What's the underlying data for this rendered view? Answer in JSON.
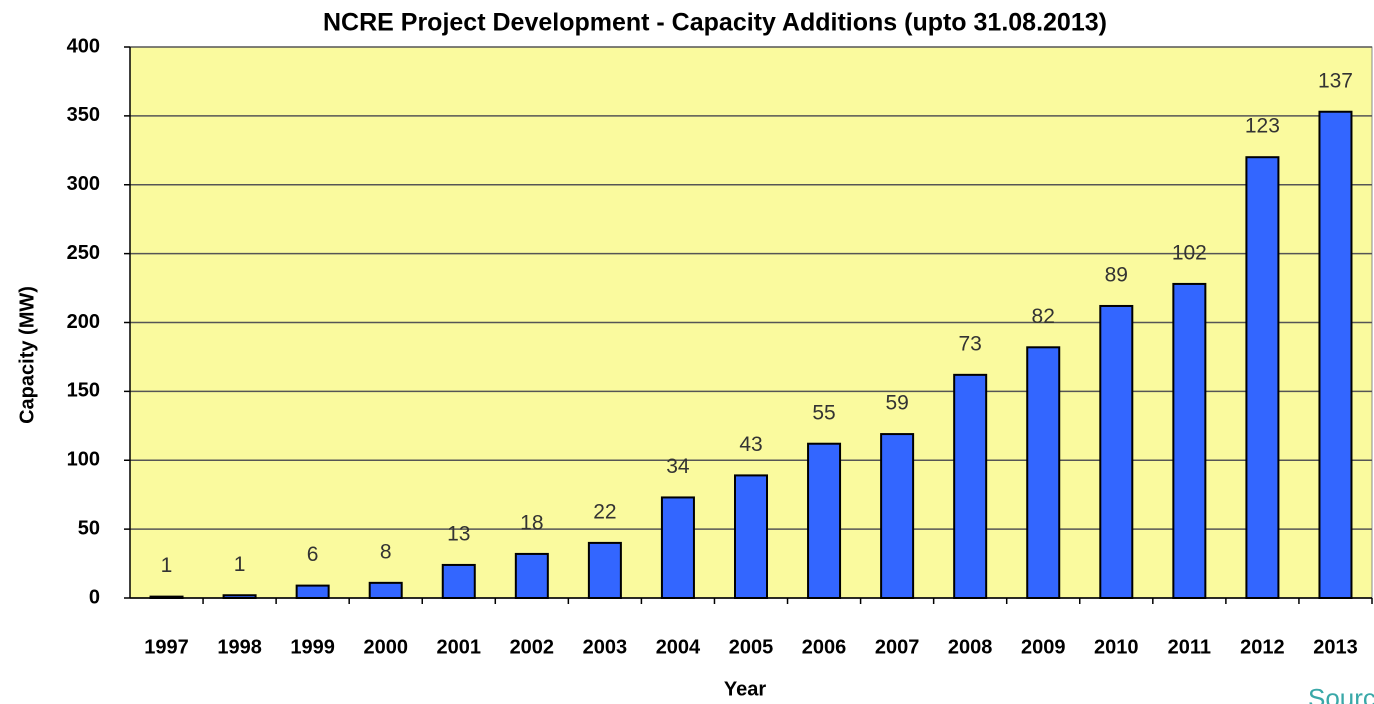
{
  "chart_data": {
    "type": "bar",
    "title": "NCRE Project Development - Capacity Additions (upto 31.08.2013)",
    "x_label": "Year",
    "y_label": "Capacity (MW)",
    "categories": [
      "1997",
      "1998",
      "1999",
      "2000",
      "2001",
      "2002",
      "2003",
      "2004",
      "2005",
      "2006",
      "2007",
      "2008",
      "2009",
      "2010",
      "2011",
      "2012",
      "2013"
    ],
    "values": [
      1,
      2,
      9,
      11,
      24,
      32,
      40,
      73,
      89,
      112,
      119,
      162,
      182,
      212,
      228,
      320,
      353
    ],
    "bar_labels": [
      1,
      1,
      6,
      8,
      13,
      18,
      22,
      34,
      43,
      55,
      59,
      73,
      82,
      89,
      102,
      123,
      137
    ],
    "color": "#3366ff",
    "plot_background": "#fafa9e",
    "ylim": [
      0,
      400
    ],
    "yticks": [
      0,
      50,
      100,
      150,
      200,
      250,
      300,
      350,
      400
    ],
    "grid": true,
    "source": "Source"
  }
}
